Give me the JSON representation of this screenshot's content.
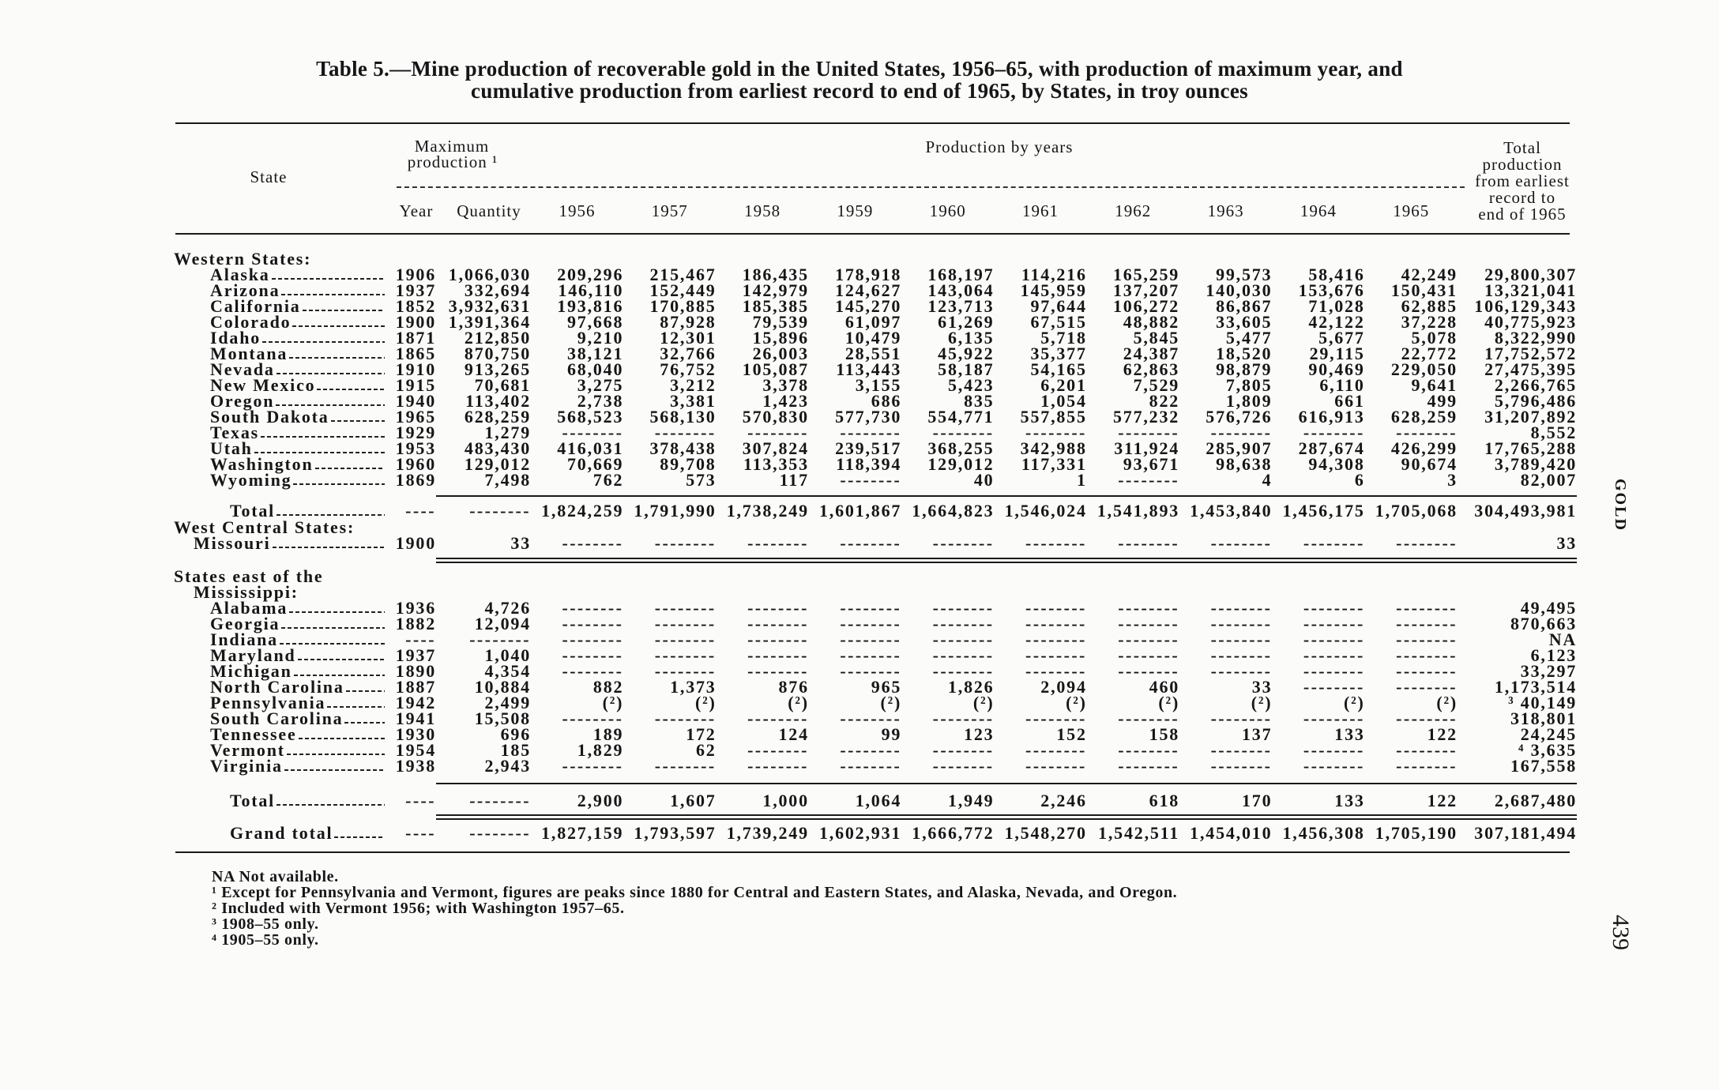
{
  "title": {
    "line1": "Table 5.—Mine production of recoverable gold in the United States, 1956–65, with production of maximum year, and",
    "line2": "cumulative production from earliest record to end of 1965, by States, in troy ounces"
  },
  "header": {
    "state_label": "State",
    "max_production_line1": "Maximum",
    "max_production_line2": "production ¹",
    "production_by_years_label": "Production by years",
    "year_label": "Year",
    "quantity_label": "Quantity",
    "years": [
      "1956",
      "1957",
      "1958",
      "1959",
      "1960",
      "1961",
      "1962",
      "1963",
      "1964",
      "1965"
    ],
    "total_lines": [
      "Total",
      "production",
      "from earliest",
      "record to",
      "end of 1965"
    ]
  },
  "western": {
    "heading": "Western States:",
    "rows": [
      {
        "state": "Alaska",
        "year": "1906",
        "quantity": "1,066,030",
        "values": [
          "209,296",
          "215,467",
          "186,435",
          "178,918",
          "168,197",
          "114,216",
          "165,259",
          "99,573",
          "58,416",
          "42,249"
        ],
        "total": "29,800,307"
      },
      {
        "state": "Arizona",
        "year": "1937",
        "quantity": "332,694",
        "values": [
          "146,110",
          "152,449",
          "142,979",
          "124,627",
          "143,064",
          "145,959",
          "137,207",
          "140,030",
          "153,676",
          "150,431"
        ],
        "total": "13,321,041"
      },
      {
        "state": "California",
        "year": "1852",
        "quantity": "3,932,631",
        "values": [
          "193,816",
          "170,885",
          "185,385",
          "145,270",
          "123,713",
          "97,644",
          "106,272",
          "86,867",
          "71,028",
          "62,885"
        ],
        "total": "106,129,343"
      },
      {
        "state": "Colorado",
        "year": "1900",
        "quantity": "1,391,364",
        "values": [
          "97,668",
          "87,928",
          "79,539",
          "61,097",
          "61,269",
          "67,515",
          "48,882",
          "33,605",
          "42,122",
          "37,228"
        ],
        "total": "40,775,923"
      },
      {
        "state": "Idaho",
        "year": "1871",
        "quantity": "212,850",
        "values": [
          "9,210",
          "12,301",
          "15,896",
          "10,479",
          "6,135",
          "5,718",
          "5,845",
          "5,477",
          "5,677",
          "5,078"
        ],
        "total": "8,322,990"
      },
      {
        "state": "Montana",
        "year": "1865",
        "quantity": "870,750",
        "values": [
          "38,121",
          "32,766",
          "26,003",
          "28,551",
          "45,922",
          "35,377",
          "24,387",
          "18,520",
          "29,115",
          "22,772"
        ],
        "total": "17,752,572"
      },
      {
        "state": "Nevada",
        "year": "1910",
        "quantity": "913,265",
        "values": [
          "68,040",
          "76,752",
          "105,087",
          "113,443",
          "58,187",
          "54,165",
          "62,863",
          "98,879",
          "90,469",
          "229,050"
        ],
        "total": "27,475,395"
      },
      {
        "state": "New Mexico",
        "year": "1915",
        "quantity": "70,681",
        "values": [
          "3,275",
          "3,212",
          "3,378",
          "3,155",
          "5,423",
          "6,201",
          "7,529",
          "7,805",
          "6,110",
          "9,641"
        ],
        "total": "2,266,765"
      },
      {
        "state": "Oregon",
        "year": "1940",
        "quantity": "113,402",
        "values": [
          "2,738",
          "3,381",
          "1,423",
          "686",
          "835",
          "1,054",
          "822",
          "1,809",
          "661",
          "499"
        ],
        "total": "5,796,486"
      },
      {
        "state": "South Dakota",
        "year": "1965",
        "quantity": "628,259",
        "values": [
          "568,523",
          "568,130",
          "570,830",
          "577,730",
          "554,771",
          "557,855",
          "577,232",
          "576,726",
          "616,913",
          "628,259"
        ],
        "total": "31,207,892"
      },
      {
        "state": "Texas",
        "year": "1929",
        "quantity": "1,279",
        "values": [
          "--------",
          "--------",
          "--------",
          "--------",
          "--------",
          "--------",
          "--------",
          "--------",
          "--------",
          "--------"
        ],
        "total": "8,552"
      },
      {
        "state": "Utah",
        "year": "1953",
        "quantity": "483,430",
        "values": [
          "416,031",
          "378,438",
          "307,824",
          "239,517",
          "368,255",
          "342,988",
          "311,924",
          "285,907",
          "287,674",
          "426,299"
        ],
        "total": "17,765,288"
      },
      {
        "state": "Washington",
        "year": "1960",
        "quantity": "129,012",
        "values": [
          "70,669",
          "89,708",
          "113,353",
          "118,394",
          "129,012",
          "117,331",
          "93,671",
          "98,638",
          "94,308",
          "90,674"
        ],
        "total": "3,789,420"
      },
      {
        "state": "Wyoming",
        "year": "1869",
        "quantity": "7,498",
        "values": [
          "762",
          "573",
          "117",
          "--------",
          "40",
          "1",
          "--------",
          "4",
          "6",
          "3"
        ],
        "total": "82,007"
      }
    ],
    "total": {
      "state": "Total",
      "year": "----",
      "quantity": "--------",
      "values": [
        "1,824,259",
        "1,791,990",
        "1,738,249",
        "1,601,867",
        "1,664,823",
        "1,546,024",
        "1,541,893",
        "1,453,840",
        "1,456,175",
        "1,705,068"
      ],
      "total": "304,493,981"
    }
  },
  "west_central": {
    "heading": "West Central States:",
    "rows": [
      {
        "state": "Missouri",
        "year": "1900",
        "quantity": "33",
        "values": [
          "--------",
          "--------",
          "--------",
          "--------",
          "--------",
          "--------",
          "--------",
          "--------",
          "--------",
          "--------"
        ],
        "total": "33"
      }
    ]
  },
  "east": {
    "heading_line1": "States east of the",
    "heading_line2": "Mississippi:",
    "rows": [
      {
        "state": "Alabama",
        "year": "1936",
        "quantity": "4,726",
        "values": [
          "--------",
          "--------",
          "--------",
          "--------",
          "--------",
          "--------",
          "--------",
          "--------",
          "--------",
          "--------"
        ],
        "total": "49,495"
      },
      {
        "state": "Georgia",
        "year": "1882",
        "quantity": "12,094",
        "values": [
          "--------",
          "--------",
          "--------",
          "--------",
          "--------",
          "--------",
          "--------",
          "--------",
          "--------",
          "--------"
        ],
        "total": "870,663"
      },
      {
        "state": "Indiana",
        "year": "----",
        "quantity": "--------",
        "values": [
          "--------",
          "--------",
          "--------",
          "--------",
          "--------",
          "--------",
          "--------",
          "--------",
          "--------",
          "--------"
        ],
        "total": "NA"
      },
      {
        "state": "Maryland",
        "year": "1937",
        "quantity": "1,040",
        "values": [
          "--------",
          "--------",
          "--------",
          "--------",
          "--------",
          "--------",
          "--------",
          "--------",
          "--------",
          "--------"
        ],
        "total": "6,123"
      },
      {
        "state": "Michigan",
        "year": "1890",
        "quantity": "4,354",
        "values": [
          "--------",
          "--------",
          "--------",
          "--------",
          "--------",
          "--------",
          "--------",
          "--------",
          "--------",
          "--------"
        ],
        "total": "33,297"
      },
      {
        "state": "North Carolina",
        "year": "1887",
        "quantity": "10,884",
        "values": [
          "882",
          "1,373",
          "876",
          "965",
          "1,826",
          "2,094",
          "460",
          "33",
          "--------",
          "--------"
        ],
        "total": "1,173,514"
      },
      {
        "state": "Pennsylvania",
        "year": "1942",
        "quantity": "2,499",
        "values": [
          "(²)",
          "(²)",
          "(²)",
          "(²)",
          "(²)",
          "(²)",
          "(²)",
          "(²)",
          "(²)",
          "(²)"
        ],
        "total": "³ 40,149"
      },
      {
        "state": "South Carolina",
        "year": "1941",
        "quantity": "15,508",
        "values": [
          "--------",
          "--------",
          "--------",
          "--------",
          "--------",
          "--------",
          "--------",
          "--------",
          "--------",
          "--------"
        ],
        "total": "318,801"
      },
      {
        "state": "Tennessee",
        "year": "1930",
        "quantity": "696",
        "values": [
          "189",
          "172",
          "124",
          "99",
          "123",
          "152",
          "158",
          "137",
          "133",
          "122"
        ],
        "total": "24,245"
      },
      {
        "state": "Vermont",
        "year": "1954",
        "quantity": "185",
        "values": [
          "1,829",
          "62",
          "--------",
          "--------",
          "--------",
          "--------",
          "--------",
          "--------",
          "--------",
          "--------"
        ],
        "total": "⁴ 3,635"
      },
      {
        "state": "Virginia",
        "year": "1938",
        "quantity": "2,943",
        "values": [
          "--------",
          "--------",
          "--------",
          "--------",
          "--------",
          "--------",
          "--------",
          "--------",
          "--------",
          "--------"
        ],
        "total": "167,558"
      }
    ],
    "total": {
      "state": "Total",
      "year": "----",
      "quantity": "--------",
      "values": [
        "2,900",
        "1,607",
        "1,000",
        "1,064",
        "1,949",
        "2,246",
        "618",
        "170",
        "133",
        "122"
      ],
      "total": "2,687,480"
    }
  },
  "grand_total": {
    "state": "Grand total",
    "year": "----",
    "quantity": "--------",
    "values": [
      "1,827,159",
      "1,793,597",
      "1,739,249",
      "1,602,931",
      "1,666,772",
      "1,548,270",
      "1,542,511",
      "1,454,010",
      "1,456,308",
      "1,705,190"
    ],
    "total": "307,181,494"
  },
  "footnotes": [
    "NA   Not available.",
    "¹ Except for Pennsylvania and Vermont, figures are peaks since 1880 for Central and Eastern States, and Alaska, Nevada, and Oregon.",
    "² Included with Vermont 1956; with Washington 1957–65.",
    "³ 1908–55 only.",
    "⁴ 1905–55 only."
  ],
  "side": {
    "running_head": "GOLD",
    "page_number": "439"
  }
}
